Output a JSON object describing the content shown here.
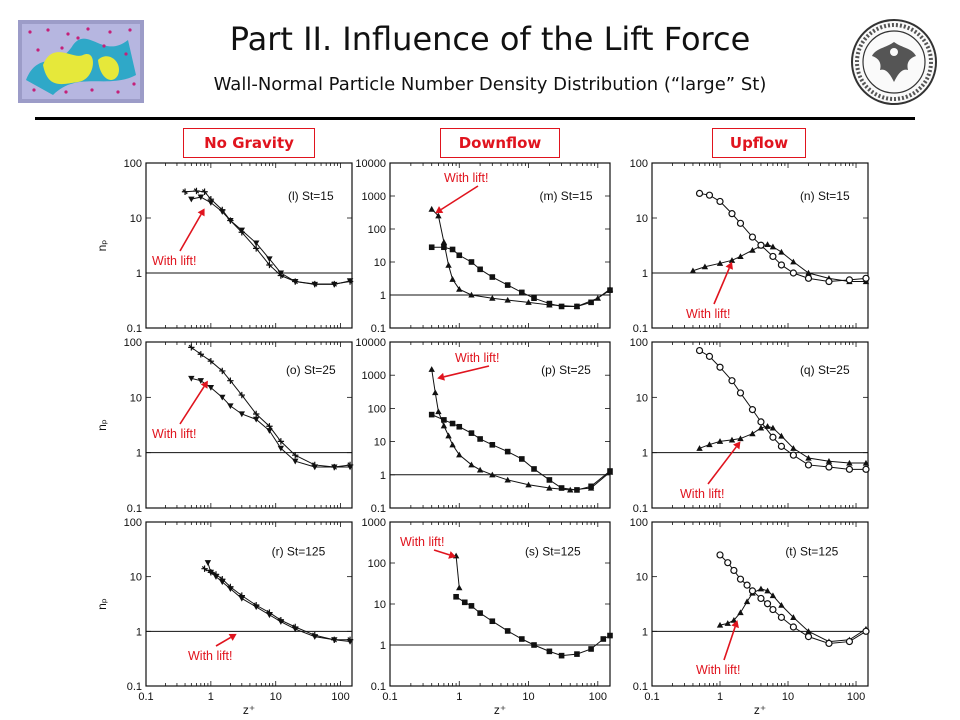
{
  "header": {
    "title": "Part II. Influence of the Lift Force",
    "subtitle": "Wall-Normal Particle Number Density Distribution (“large” St)"
  },
  "columns": [
    "No Gravity",
    "Downflow",
    "Upflow"
  ],
  "colors": {
    "annotation": "#e0141e",
    "ink": "#111111"
  },
  "axes": {
    "xlabel": "z⁺",
    "ylabel": "nₚ",
    "x_ticks": [
      "0.1",
      "1",
      "10",
      "100"
    ]
  },
  "annotation_text": "With lift!",
  "chart_data": [
    {
      "id": "l",
      "type": "line",
      "label": "(l) St=15",
      "xscale": "log",
      "yscale": "log",
      "xlim": [
        0.1,
        150
      ],
      "ylim": [
        0.1,
        100
      ],
      "y_ticks": [
        "100",
        "10",
        "1",
        "0.1"
      ],
      "reference_line": 1,
      "series": [
        {
          "name": "With lift!",
          "marker": "triangle-down",
          "x": [
            0.5,
            0.7,
            1,
            1.5,
            2,
            3,
            5,
            8,
            12,
            20,
            40,
            80,
            140
          ],
          "y": [
            22,
            24,
            19,
            13,
            9,
            6,
            3.5,
            1.8,
            1.0,
            0.7,
            0.62,
            0.62,
            0.72
          ]
        },
        {
          "name": "",
          "marker": "plus",
          "x": [
            0.4,
            0.6,
            0.8,
            1,
            1.5,
            2,
            3,
            5,
            8,
            12,
            20,
            40,
            80,
            140
          ],
          "y": [
            30,
            31,
            30,
            22,
            14,
            9,
            5.5,
            2.8,
            1.4,
            0.9,
            0.7,
            0.63,
            0.63,
            0.7
          ]
        }
      ],
      "annotation": {
        "text": "With lift!"
      }
    },
    {
      "id": "m",
      "type": "line",
      "label": "(m) St=15",
      "xscale": "log",
      "yscale": "log",
      "xlim": [
        0.1,
        150
      ],
      "ylim": [
        0.1,
        10000
      ],
      "y_ticks": [
        "10000",
        "1000",
        "100",
        "10",
        "1",
        "0.1"
      ],
      "reference_line": 1,
      "series": [
        {
          "name": "With lift!",
          "marker": "triangle",
          "x": [
            0.4,
            0.5,
            0.6,
            0.7,
            0.8,
            1,
            1.5,
            3,
            5,
            10,
            20,
            50,
            100,
            150
          ],
          "y": [
            400,
            250,
            40,
            8,
            3,
            1.5,
            1.0,
            0.8,
            0.7,
            0.6,
            0.5,
            0.45,
            0.8,
            1.5
          ]
        },
        {
          "name": "",
          "marker": "square",
          "x": [
            0.4,
            0.6,
            0.8,
            1,
            1.5,
            2,
            3,
            5,
            8,
            12,
            20,
            30,
            50,
            80,
            150
          ],
          "y": [
            28,
            28,
            24,
            16,
            10,
            6,
            3.5,
            2,
            1.2,
            0.8,
            0.55,
            0.45,
            0.45,
            0.6,
            1.4
          ]
        }
      ],
      "annotation": {
        "text": "With lift!"
      }
    },
    {
      "id": "n",
      "type": "line",
      "label": "(n) St=15",
      "xscale": "log",
      "yscale": "log",
      "xlim": [
        0.1,
        150
      ],
      "ylim": [
        0.1,
        100
      ],
      "y_ticks": [
        "100",
        "10",
        "1",
        "0.1"
      ],
      "reference_line": 1,
      "series": [
        {
          "name": "With lift!",
          "marker": "triangle",
          "x": [
            0.4,
            0.6,
            1,
            1.5,
            2,
            3,
            4,
            5,
            6,
            8,
            12,
            20,
            40,
            80,
            140
          ],
          "y": [
            1.1,
            1.3,
            1.5,
            1.7,
            2.0,
            2.6,
            3.1,
            3.3,
            3.0,
            2.4,
            1.6,
            1.0,
            0.8,
            0.7,
            0.7
          ]
        },
        {
          "name": "",
          "marker": "circle",
          "x": [
            0.5,
            0.7,
            1,
            1.5,
            2,
            3,
            4,
            6,
            8,
            12,
            20,
            40,
            80,
            140
          ],
          "y": [
            28,
            26,
            20,
            12,
            8,
            4.5,
            3.2,
            2.0,
            1.4,
            1.0,
            0.8,
            0.7,
            0.75,
            0.8
          ]
        }
      ],
      "annotation": {
        "text": "With lift!"
      }
    },
    {
      "id": "o",
      "type": "line",
      "label": "(o) St=25",
      "xscale": "log",
      "yscale": "log",
      "xlim": [
        0.1,
        150
      ],
      "ylim": [
        0.1,
        100
      ],
      "y_ticks": [
        "100",
        "10",
        "1",
        "0.1"
      ],
      "reference_line": 1,
      "series": [
        {
          "name": "With lift!",
          "marker": "triangle-down",
          "x": [
            0.5,
            0.7,
            1,
            1.5,
            2,
            3,
            5,
            8,
            12,
            20,
            40,
            80,
            140
          ],
          "y": [
            22,
            20,
            15,
            10,
            7,
            5,
            4,
            2.5,
            1.2,
            0.7,
            0.55,
            0.55,
            0.55
          ]
        },
        {
          "name": "",
          "marker": "plus",
          "x": [
            0.5,
            0.7,
            1,
            1.5,
            2,
            3,
            5,
            8,
            12,
            20,
            40,
            80,
            140
          ],
          "y": [
            80,
            60,
            45,
            30,
            20,
            11,
            5,
            3,
            1.6,
            0.9,
            0.6,
            0.55,
            0.6
          ]
        }
      ],
      "annotation": {
        "text": "With lift!"
      }
    },
    {
      "id": "p",
      "type": "line",
      "label": "(p) St=25",
      "xscale": "log",
      "yscale": "log",
      "xlim": [
        0.1,
        150
      ],
      "ylim": [
        0.1,
        10000
      ],
      "y_ticks": [
        "10000",
        "1000",
        "100",
        "10",
        "1",
        "0.1"
      ],
      "reference_line": 1,
      "series": [
        {
          "name": "With lift!",
          "marker": "triangle",
          "x": [
            0.4,
            0.45,
            0.5,
            0.6,
            0.7,
            0.8,
            1,
            1.5,
            2,
            3,
            5,
            10,
            20,
            40,
            80,
            150
          ],
          "y": [
            1500,
            300,
            80,
            30,
            15,
            8,
            4,
            2,
            1.4,
            1.0,
            0.7,
            0.5,
            0.4,
            0.35,
            0.4,
            1.2
          ]
        },
        {
          "name": "",
          "marker": "square",
          "x": [
            0.4,
            0.6,
            0.8,
            1,
            1.5,
            2,
            3,
            5,
            8,
            12,
            20,
            30,
            50,
            80,
            150
          ],
          "y": [
            65,
            45,
            35,
            28,
            18,
            12,
            8,
            5,
            3,
            1.5,
            0.7,
            0.4,
            0.35,
            0.45,
            1.3
          ]
        }
      ],
      "annotation": {
        "text": "With lift!"
      }
    },
    {
      "id": "q",
      "type": "line",
      "label": "(q) St=25",
      "xscale": "log",
      "yscale": "log",
      "xlim": [
        0.1,
        150
      ],
      "ylim": [
        0.1,
        100
      ],
      "y_ticks": [
        "100",
        "10",
        "1",
        "0.1"
      ],
      "reference_line": 1,
      "series": [
        {
          "name": "With lift!",
          "marker": "triangle",
          "x": [
            0.5,
            0.7,
            1,
            1.5,
            2,
            3,
            4,
            5,
            6,
            8,
            12,
            20,
            40,
            80,
            140
          ],
          "y": [
            1.2,
            1.4,
            1.6,
            1.7,
            1.8,
            2.2,
            2.8,
            3.0,
            2.8,
            2.0,
            1.2,
            0.8,
            0.7,
            0.65,
            0.65
          ]
        },
        {
          "name": "",
          "marker": "circle",
          "x": [
            0.5,
            0.7,
            1,
            1.5,
            2,
            3,
            4,
            6,
            8,
            12,
            20,
            40,
            80,
            140
          ],
          "y": [
            70,
            55,
            35,
            20,
            12,
            6,
            3.6,
            1.9,
            1.3,
            0.9,
            0.6,
            0.55,
            0.5,
            0.5
          ]
        }
      ],
      "annotation": {
        "text": "With lift!"
      }
    },
    {
      "id": "r",
      "type": "line",
      "label": "(r) St=125",
      "xscale": "log",
      "yscale": "log",
      "xlim": [
        0.1,
        150
      ],
      "ylim": [
        0.1,
        100
      ],
      "y_ticks": [
        "100",
        "10",
        "1",
        "0.1"
      ],
      "reference_line": 1,
      "series": [
        {
          "name": "With lift!",
          "marker": "triangle-down",
          "x": [
            0.9,
            1.0,
            1.2,
            1.5,
            2,
            3,
            5,
            8,
            12,
            20,
            40,
            80,
            140
          ],
          "y": [
            18,
            12,
            10,
            8,
            6,
            4,
            2.8,
            2,
            1.5,
            1.1,
            0.8,
            0.7,
            0.65
          ]
        },
        {
          "name": "",
          "marker": "plus",
          "x": [
            0.8,
            1.0,
            1.2,
            1.5,
            2,
            3,
            5,
            8,
            12,
            20,
            40,
            80,
            140
          ],
          "y": [
            14,
            12,
            11,
            9,
            6.5,
            4.5,
            3,
            2.2,
            1.6,
            1.2,
            0.85,
            0.7,
            0.7
          ]
        }
      ],
      "annotation": {
        "text": "With lift!"
      }
    },
    {
      "id": "s",
      "type": "line",
      "label": "(s) St=125",
      "xscale": "log",
      "yscale": "log",
      "xlim": [
        0.1,
        150
      ],
      "ylim": [
        0.1,
        1000
      ],
      "y_ticks": [
        "1000",
        "100",
        "10",
        "1",
        "0.1"
      ],
      "reference_line": 1,
      "series": [
        {
          "name": "With lift!",
          "marker": "triangle",
          "x": [
            0.9,
            1.0
          ],
          "y": [
            150,
            25
          ]
        },
        {
          "name": "",
          "marker": "square",
          "x": [
            0.9,
            1.2,
            1.5,
            2,
            3,
            5,
            8,
            12,
            20,
            30,
            50,
            80,
            120,
            150
          ],
          "y": [
            15,
            11,
            9,
            6,
            3.8,
            2.2,
            1.4,
            1.0,
            0.7,
            0.55,
            0.6,
            0.8,
            1.4,
            1.7
          ]
        }
      ],
      "annotation": {
        "text": "With lift!"
      }
    },
    {
      "id": "t",
      "type": "line",
      "label": "(t) St=125",
      "xscale": "log",
      "yscale": "log",
      "xlim": [
        0.1,
        150
      ],
      "ylim": [
        0.1,
        100
      ],
      "y_ticks": [
        "100",
        "10",
        "1",
        "0.1"
      ],
      "reference_line": 1,
      "series": [
        {
          "name": "With lift!",
          "marker": "triangle",
          "x": [
            1,
            1.3,
            1.6,
            2,
            2.5,
            3,
            4,
            5,
            6,
            8,
            12,
            20,
            40,
            80,
            140
          ],
          "y": [
            1.3,
            1.4,
            1.6,
            2.2,
            3.5,
            5,
            6,
            5.5,
            4.5,
            3,
            1.8,
            1.0,
            0.65,
            0.7,
            1.1
          ]
        },
        {
          "name": "",
          "marker": "circle",
          "x": [
            1,
            1.3,
            1.6,
            2,
            2.5,
            3,
            4,
            5,
            6,
            8,
            12,
            20,
            40,
            80,
            140
          ],
          "y": [
            25,
            18,
            13,
            9,
            7,
            5.5,
            4,
            3.2,
            2.5,
            1.8,
            1.2,
            0.8,
            0.6,
            0.65,
            1.0
          ]
        }
      ],
      "annotation": {
        "text": "With lift!"
      }
    }
  ]
}
